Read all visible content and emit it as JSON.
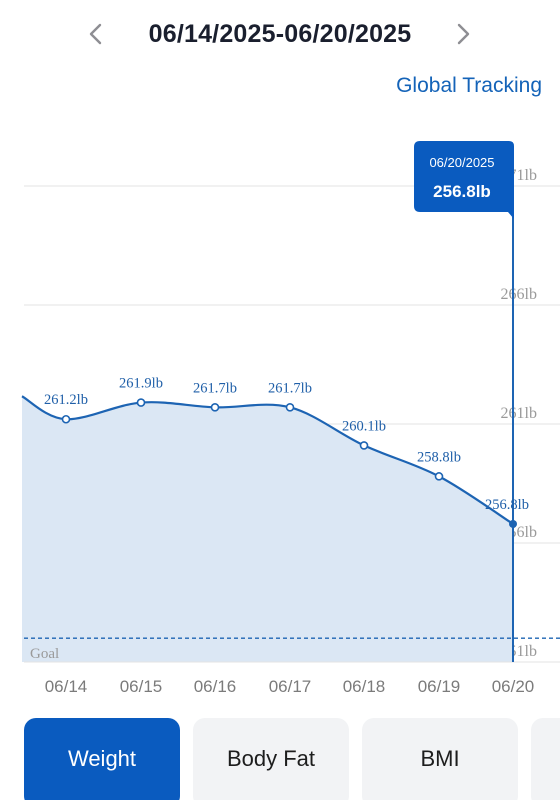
{
  "header": {
    "date_range": "06/14/2025-06/20/2025",
    "prev_icon": "chevron-left-icon",
    "next_icon": "chevron-right-icon"
  },
  "links": {
    "global_tracking": "Global Tracking"
  },
  "colors": {
    "accent": "#0a5bbf",
    "line": "#1d64b3",
    "fill": "#dbe7f4",
    "grid": "#e3e3e3",
    "tab_inactive": "#f2f3f5"
  },
  "chart_data": {
    "type": "area",
    "x": [
      "06/14",
      "06/15",
      "06/16",
      "06/17",
      "06/18",
      "06/19",
      "06/20"
    ],
    "values": [
      261.2,
      261.9,
      261.7,
      261.7,
      260.1,
      258.8,
      256.8
    ],
    "value_labels": [
      "261.2lb",
      "261.9lb",
      "261.7lb",
      "261.7lb",
      "260.1lb",
      "258.8lb",
      "256.8lb"
    ],
    "y_ticks": [
      {
        "value": 271,
        "label": "271lb"
      },
      {
        "value": 266,
        "label": "266lb"
      },
      {
        "value": 261,
        "label": "261lb"
      },
      {
        "value": 256,
        "label": "256lb"
      },
      {
        "value": 251,
        "label": "251lb"
      }
    ],
    "ylim": [
      251,
      271
    ],
    "goal": {
      "label": "Goal",
      "value": 252
    },
    "grid": true,
    "selected": {
      "index": 6,
      "date": "06/20/2025",
      "value_label": "256.8lb"
    }
  },
  "tabs": [
    {
      "label": "Weight",
      "active": true
    },
    {
      "label": "Body Fat",
      "active": false
    },
    {
      "label": "BMI",
      "active": false
    },
    {
      "label": "",
      "active": false
    }
  ]
}
